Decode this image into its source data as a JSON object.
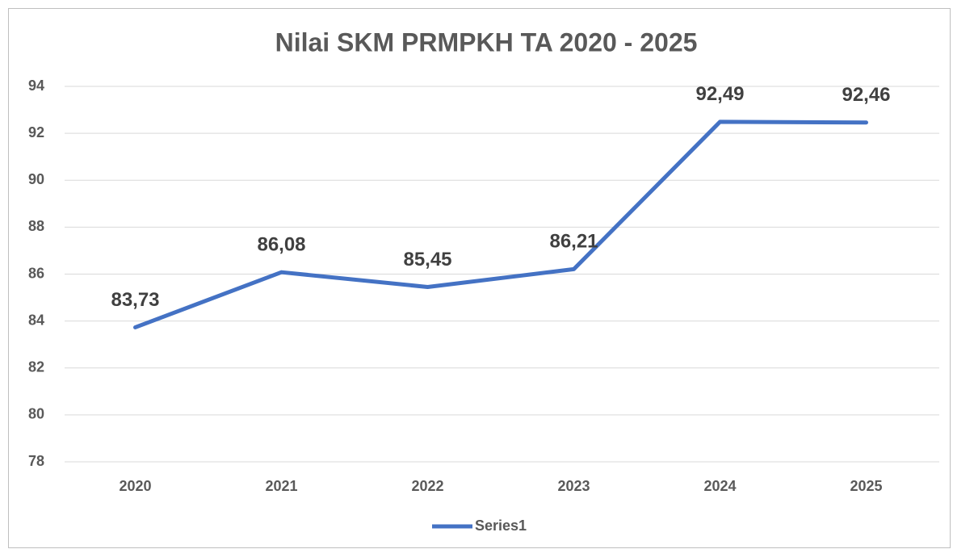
{
  "chart_data": {
    "type": "line",
    "title": "Nilai SKM PRMPKH TA 2020 - 2025",
    "categories": [
      "2020",
      "2021",
      "2022",
      "2023",
      "2024",
      "2025"
    ],
    "series": [
      {
        "name": "Series1",
        "color": "#4472c4",
        "values": [
          83.73,
          86.08,
          85.45,
          86.21,
          92.49,
          92.46
        ],
        "value_labels": [
          "83,73",
          "86,08",
          "85,45",
          "86,21",
          "92,49",
          "92,46"
        ]
      }
    ],
    "ylim": [
      78,
      94
    ],
    "yticks": [
      78,
      80,
      82,
      84,
      86,
      88,
      90,
      92,
      94
    ],
    "grid": true,
    "legend": "bottom"
  }
}
